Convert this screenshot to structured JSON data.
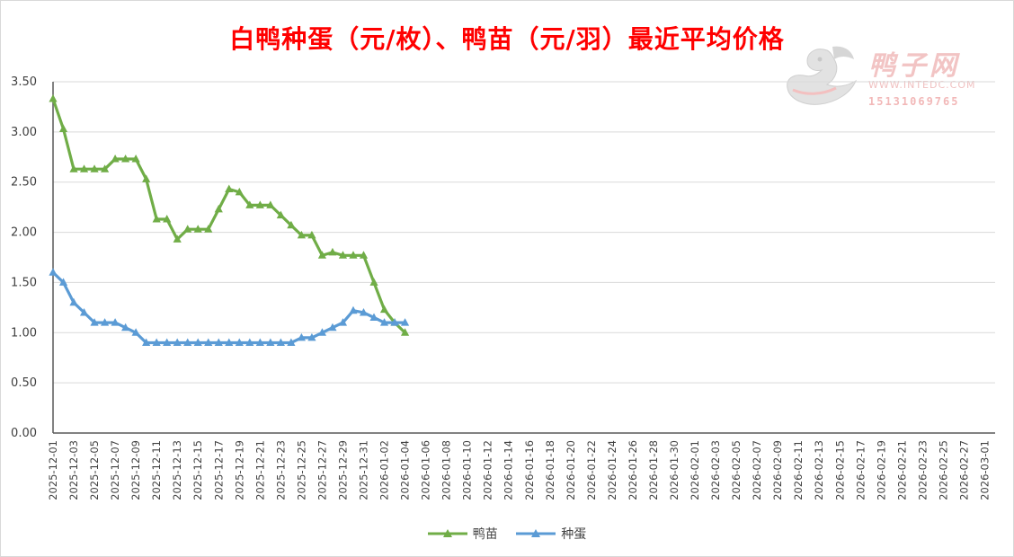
{
  "title": "白鸭种蛋（元/枚）、鸭苗（元/羽）最近平均价格",
  "watermark": {
    "brand": "鸭子网",
    "url": "WWW.INTEDC.COM",
    "phone": "15131069765"
  },
  "colors": {
    "duckling": "#70ad47",
    "egg": "#5b9bd5",
    "title": "#ff0000",
    "grid": "#d9d9d9",
    "axis_text": "#404040"
  },
  "chart_data": {
    "type": "line",
    "title": "白鸭种蛋（元/枚）、鸭苗（元/羽）最近平均价格",
    "xlabel": "",
    "ylabel": "",
    "ylim": [
      0,
      3.5
    ],
    "y_ticks": [
      "0.00",
      "0.50",
      "1.00",
      "1.50",
      "2.00",
      "2.50",
      "3.00",
      "3.50"
    ],
    "y_tick_values": [
      0,
      0.5,
      1.0,
      1.5,
      2.0,
      2.5,
      3.0,
      3.5
    ],
    "x_start": "2025-12-01",
    "x_end": "2026-03-02",
    "x_tick_labels": [
      "2025-12-01",
      "2025-12-03",
      "2025-12-05",
      "2025-12-07",
      "2025-12-09",
      "2025-12-11",
      "2025-12-13",
      "2025-12-15",
      "2025-12-17",
      "2025-12-19",
      "2025-12-21",
      "2025-12-23",
      "2025-12-25",
      "2025-12-27",
      "2025-12-29",
      "2025-12-31",
      "2026-01-02",
      "2026-01-04",
      "2026-01-06",
      "2026-01-08",
      "2026-01-10",
      "2026-01-12",
      "2026-01-14",
      "2026-01-16",
      "2026-01-18",
      "2026-01-20",
      "2026-01-22",
      "2026-01-24",
      "2026-01-26",
      "2026-01-28",
      "2026-01-30",
      "2026-02-01",
      "2026-02-03",
      "2026-02-05",
      "2026-02-07",
      "2026-02-09",
      "2026-02-11",
      "2026-02-13",
      "2026-02-15",
      "2026-02-17",
      "2026-02-19",
      "2026-02-21",
      "2026-02-23",
      "2026-02-25",
      "2026-02-27",
      "2026-03-01"
    ],
    "grid": true,
    "legend_position": "bottom",
    "x": [
      "2025-12-01",
      "2025-12-02",
      "2025-12-03",
      "2025-12-04",
      "2025-12-05",
      "2025-12-06",
      "2025-12-07",
      "2025-12-08",
      "2025-12-09",
      "2025-12-10",
      "2025-12-11",
      "2025-12-12",
      "2025-12-13",
      "2025-12-14",
      "2025-12-15",
      "2025-12-16",
      "2025-12-17",
      "2025-12-18",
      "2025-12-19",
      "2025-12-20",
      "2025-12-21",
      "2025-12-22",
      "2025-12-23",
      "2025-12-24",
      "2025-12-25",
      "2025-12-26",
      "2025-12-27",
      "2025-12-28",
      "2025-12-29",
      "2025-12-30",
      "2025-12-31",
      "2026-01-01",
      "2026-01-02",
      "2026-01-03",
      "2026-01-04"
    ],
    "series": [
      {
        "name": "鸭苗",
        "color": "#70ad47",
        "values": [
          3.33,
          3.03,
          2.63,
          2.63,
          2.63,
          2.63,
          2.73,
          2.73,
          2.73,
          2.53,
          2.13,
          2.13,
          1.93,
          2.03,
          2.03,
          2.03,
          2.23,
          2.43,
          2.4,
          2.27,
          2.27,
          2.27,
          2.17,
          2.07,
          1.97,
          1.97,
          1.77,
          1.8,
          1.77,
          1.77,
          1.77,
          1.5,
          1.23,
          1.1,
          1.0
        ]
      },
      {
        "name": "种蛋",
        "color": "#5b9bd5",
        "values": [
          1.6,
          1.5,
          1.3,
          1.2,
          1.1,
          1.1,
          1.1,
          1.05,
          1.0,
          0.9,
          0.9,
          0.9,
          0.9,
          0.9,
          0.9,
          0.9,
          0.9,
          0.9,
          0.9,
          0.9,
          0.9,
          0.9,
          0.9,
          0.9,
          0.95,
          0.95,
          1.0,
          1.05,
          1.1,
          1.22,
          1.2,
          1.15,
          1.1,
          1.1,
          1.1
        ]
      }
    ]
  }
}
